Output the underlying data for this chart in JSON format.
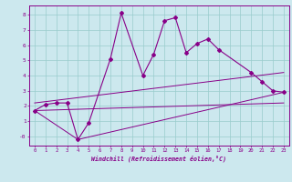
{
  "xlabel": "Windchill (Refroidissement éolien,°C)",
  "bg_color": "#cce8ee",
  "line_color": "#880088",
  "grid_color": "#99cccc",
  "x_ticks": [
    0,
    1,
    2,
    3,
    4,
    5,
    6,
    7,
    8,
    9,
    10,
    11,
    12,
    13,
    14,
    15,
    16,
    17,
    18,
    19,
    20,
    21,
    22,
    23
  ],
  "y_ticks": [
    0,
    1,
    2,
    3,
    4,
    5,
    6,
    7,
    8
  ],
  "y_tick_labels": [
    "-0",
    "1",
    "2",
    "3",
    "4",
    "5",
    "6",
    "7",
    "8"
  ],
  "ylim": [
    -0.6,
    8.6
  ],
  "xlim": [
    -0.5,
    23.5
  ],
  "series1_x": [
    0,
    1,
    2,
    3,
    4,
    5,
    7,
    8,
    10,
    11,
    12,
    13,
    14,
    15,
    16,
    17,
    20,
    21,
    22,
    23
  ],
  "series1_y": [
    1.7,
    2.1,
    2.2,
    2.2,
    -0.2,
    0.9,
    5.1,
    8.1,
    4.0,
    5.4,
    7.6,
    7.8,
    5.5,
    6.1,
    6.4,
    5.7,
    4.2,
    3.6,
    3.0,
    2.9
  ],
  "series2_x": [
    0,
    23
  ],
  "series2_y": [
    1.7,
    2.2
  ],
  "series3_x": [
    0,
    4,
    23
  ],
  "series3_y": [
    1.7,
    -0.2,
    2.9
  ],
  "series4_x": [
    0,
    23
  ],
  "series4_y": [
    2.2,
    4.2
  ]
}
